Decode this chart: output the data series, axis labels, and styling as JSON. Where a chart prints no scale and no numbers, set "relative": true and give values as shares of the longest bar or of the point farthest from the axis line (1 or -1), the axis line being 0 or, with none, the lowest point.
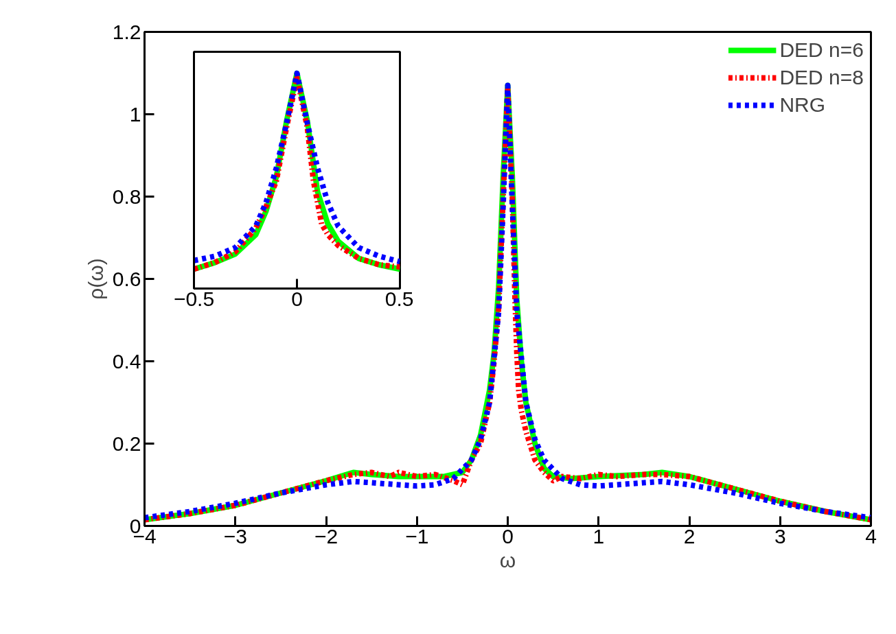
{
  "chart_data": [
    {
      "type": "line",
      "xlabel": "ω",
      "ylabel": "ρ(ω)",
      "xlim": [
        -4,
        4
      ],
      "ylim": [
        0,
        1.2
      ],
      "xticks": [
        -4,
        -3,
        -2,
        -1,
        0,
        1,
        2,
        3,
        4
      ],
      "yticks": [
        0,
        0.2,
        0.4,
        0.6,
        0.8,
        1,
        1.2
      ],
      "grid": false,
      "legend": "top right",
      "series": [
        {
          "name": "DED n=6",
          "color": "#00ff00",
          "line_style": "solid",
          "x": [
            -4,
            -3.5,
            -3,
            -2.5,
            -2,
            -1.7,
            -1.5,
            -1.2,
            -1,
            -0.7,
            -0.5,
            -0.4,
            -0.3,
            -0.2,
            -0.15,
            -0.1,
            -0.05,
            0,
            0.05,
            0.1,
            0.15,
            0.2,
            0.3,
            0.4,
            0.5,
            0.7,
            1,
            1.5,
            1.7,
            2,
            2.5,
            3,
            3.5,
            4
          ],
          "values": [
            0.015,
            0.03,
            0.05,
            0.08,
            0.11,
            0.13,
            0.125,
            0.12,
            0.12,
            0.12,
            0.13,
            0.16,
            0.22,
            0.33,
            0.42,
            0.58,
            0.85,
            1.07,
            0.85,
            0.55,
            0.4,
            0.3,
            0.2,
            0.14,
            0.12,
            0.115,
            0.12,
            0.125,
            0.13,
            0.12,
            0.09,
            0.06,
            0.035,
            0.015
          ]
        },
        {
          "name": "DED n=8",
          "color": "#ff0000",
          "line_style": "dashdot",
          "x": [
            -4,
            -3.5,
            -3,
            -2.5,
            -2,
            -1.7,
            -1.5,
            -1.3,
            -1.2,
            -1,
            -0.8,
            -0.6,
            -0.5,
            -0.4,
            -0.3,
            -0.2,
            -0.15,
            -0.1,
            -0.05,
            0,
            0.05,
            0.08,
            0.1,
            0.12,
            0.15,
            0.2,
            0.3,
            0.4,
            0.5,
            0.6,
            0.8,
            1,
            1.2,
            1.5,
            1.7,
            2,
            2.5,
            3,
            3.5,
            4
          ],
          "values": [
            0.015,
            0.03,
            0.05,
            0.08,
            0.11,
            0.125,
            0.13,
            0.12,
            0.13,
            0.12,
            0.125,
            0.11,
            0.1,
            0.16,
            0.2,
            0.3,
            0.4,
            0.53,
            0.8,
            1.06,
            0.8,
            0.55,
            0.42,
            0.33,
            0.28,
            0.23,
            0.16,
            0.13,
            0.11,
            0.12,
            0.115,
            0.125,
            0.12,
            0.125,
            0.125,
            0.12,
            0.09,
            0.06,
            0.035,
            0.015
          ]
        },
        {
          "name": "NRG",
          "color": "#0000ff",
          "line_style": "dashed",
          "x": [
            -4,
            -3.5,
            -3,
            -2.5,
            -2,
            -1.7,
            -1.5,
            -1.2,
            -1,
            -0.8,
            -0.6,
            -0.4,
            -0.3,
            -0.2,
            -0.1,
            -0.05,
            0,
            0.05,
            0.1,
            0.2,
            0.3,
            0.4,
            0.6,
            0.8,
            1,
            1.2,
            1.5,
            1.7,
            2,
            2.5,
            3,
            3.5,
            4
          ],
          "values": [
            0.02,
            0.035,
            0.055,
            0.08,
            0.1,
            0.108,
            0.105,
            0.1,
            0.097,
            0.1,
            0.115,
            0.16,
            0.21,
            0.3,
            0.52,
            0.78,
            1.07,
            0.78,
            0.52,
            0.3,
            0.21,
            0.16,
            0.115,
            0.1,
            0.097,
            0.1,
            0.105,
            0.108,
            0.1,
            0.08,
            0.055,
            0.035,
            0.02
          ]
        }
      ]
    },
    {
      "type": "line",
      "relative": true,
      "xlim": [
        -0.5,
        0.5
      ],
      "xticks": [
        -0.5,
        0,
        0.5
      ],
      "tick_labels": "x",
      "grid": false,
      "series": [
        {
          "color": "#00ff00",
          "line_style": "solid",
          "x": [
            -0.5,
            -0.4,
            -0.3,
            -0.2,
            -0.15,
            -0.1,
            -0.05,
            0,
            0.05,
            0.1,
            0.15,
            0.2,
            0.3,
            0.4,
            0.5
          ],
          "values": [
            0.09,
            0.12,
            0.16,
            0.25,
            0.36,
            0.52,
            0.78,
            1.0,
            0.78,
            0.45,
            0.3,
            0.22,
            0.14,
            0.11,
            0.09
          ]
        },
        {
          "color": "#ff0000",
          "line_style": "dashdot",
          "x": [
            -0.5,
            -0.4,
            -0.3,
            -0.2,
            -0.15,
            -0.1,
            -0.05,
            0,
            0.05,
            0.08,
            0.1,
            0.12,
            0.15,
            0.2,
            0.3,
            0.4,
            0.5
          ],
          "values": [
            0.09,
            0.12,
            0.17,
            0.28,
            0.38,
            0.5,
            0.75,
            0.98,
            0.75,
            0.5,
            0.4,
            0.3,
            0.25,
            0.2,
            0.14,
            0.11,
            0.1
          ]
        },
        {
          "color": "#0000ff",
          "line_style": "dashed",
          "x": [
            -0.5,
            -0.4,
            -0.3,
            -0.2,
            -0.15,
            -0.1,
            -0.05,
            0,
            0.05,
            0.1,
            0.15,
            0.2,
            0.3,
            0.4,
            0.5
          ],
          "values": [
            0.13,
            0.15,
            0.19,
            0.29,
            0.4,
            0.56,
            0.77,
            1.0,
            0.77,
            0.56,
            0.4,
            0.29,
            0.19,
            0.15,
            0.125
          ]
        }
      ]
    }
  ]
}
